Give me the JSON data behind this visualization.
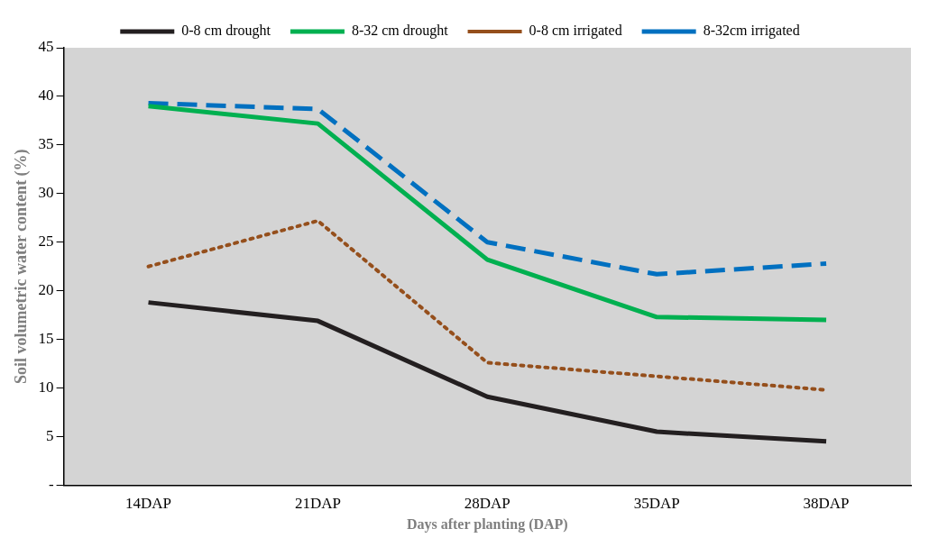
{
  "chart_data": {
    "type": "line",
    "xlabel": "Days after planting (DAP)",
    "ylabel": "Soil volumetric water content (%)",
    "categories": [
      "14DAP",
      "21DAP",
      "28DAP",
      "35DAP",
      "38DAP"
    ],
    "series": [
      {
        "name": "0-8 cm drought",
        "color": "#231f20",
        "line_style": "solid",
        "values": [
          18.8,
          16.9,
          9.1,
          5.5,
          4.5
        ]
      },
      {
        "name": "8-32 cm drought",
        "color": "#00b050",
        "line_style": "solid",
        "values": [
          39.0,
          37.2,
          23.2,
          17.3,
          17.0
        ]
      },
      {
        "name": "0-8 cm irrigated",
        "color": "#954f1c",
        "line_style": "dotted",
        "values": [
          22.5,
          27.2,
          12.6,
          11.2,
          9.8
        ]
      },
      {
        "name": "8-32cm irrigated",
        "color": "#0070c0",
        "line_style": "dashed",
        "values": [
          39.3,
          38.7,
          25.0,
          21.7,
          22.8
        ]
      }
    ],
    "ylim": [
      0,
      45
    ],
    "yticks": [
      {
        "value": 0,
        "label": "-"
      },
      5,
      10,
      15,
      20,
      25,
      30,
      35,
      40,
      45
    ],
    "grid": false,
    "legend": "top",
    "marker": "none"
  }
}
